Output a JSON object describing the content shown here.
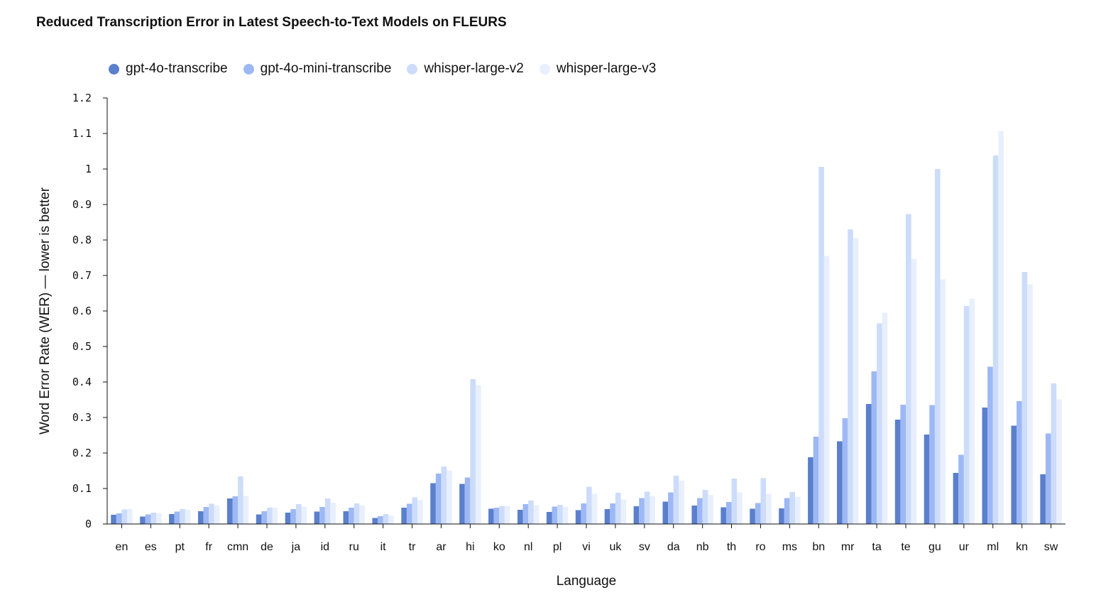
{
  "chart_data": {
    "type": "bar",
    "title": "Reduced Transcription Error in Latest Speech-to-Text Models on FLEURS",
    "xlabel": "Language",
    "ylabel": "Word Error Rate (WER) — lower is better",
    "ylim": [
      0,
      1.2
    ],
    "yticks": [
      "0",
      "0.1",
      "0.2",
      "0.3",
      "0.4",
      "0.5",
      "0.6",
      "0.7",
      "0.8",
      "0.9",
      "1",
      "1.1",
      "1.2"
    ],
    "grid": false,
    "legend_position": "top-left",
    "categories": [
      "en",
      "es",
      "pt",
      "fr",
      "cmn",
      "de",
      "ja",
      "id",
      "ru",
      "it",
      "tr",
      "ar",
      "hi",
      "ko",
      "nl",
      "pl",
      "vi",
      "uk",
      "sv",
      "da",
      "nb",
      "th",
      "ro",
      "ms",
      "bn",
      "mr",
      "ta",
      "te",
      "gu",
      "ur",
      "ml",
      "kn",
      "sw"
    ],
    "series": [
      {
        "name": "gpt-4o-transcribe",
        "color": "#5a7fcc",
        "values": [
          0.026,
          0.021,
          0.028,
          0.036,
          0.072,
          0.027,
          0.032,
          0.035,
          0.036,
          0.017,
          0.046,
          0.115,
          0.113,
          0.043,
          0.04,
          0.034,
          0.039,
          0.042,
          0.05,
          0.063,
          0.052,
          0.047,
          0.043,
          0.044,
          0.188,
          0.233,
          0.338,
          0.294,
          0.252,
          0.144,
          0.328,
          0.277,
          0.14
        ]
      },
      {
        "name": "gpt-4o-mini-transcribe",
        "color": "#9db8f4",
        "values": [
          0.03,
          0.027,
          0.035,
          0.048,
          0.078,
          0.036,
          0.042,
          0.048,
          0.046,
          0.022,
          0.057,
          0.142,
          0.131,
          0.046,
          0.056,
          0.049,
          0.058,
          0.058,
          0.073,
          0.089,
          0.073,
          0.062,
          0.059,
          0.073,
          0.246,
          0.298,
          0.43,
          0.336,
          0.335,
          0.195,
          0.443,
          0.346,
          0.255
        ]
      },
      {
        "name": "whisper-large-v2",
        "color": "#ccdcfa",
        "values": [
          0.041,
          0.032,
          0.042,
          0.057,
          0.134,
          0.046,
          0.056,
          0.072,
          0.058,
          0.028,
          0.075,
          0.162,
          0.408,
          0.05,
          0.066,
          0.054,
          0.105,
          0.088,
          0.091,
          0.136,
          0.096,
          0.128,
          0.129,
          0.09,
          1.006,
          0.83,
          0.565,
          0.873,
          1.0,
          0.614,
          1.038,
          0.71,
          0.396
        ]
      },
      {
        "name": "whisper-large-v3",
        "color": "#e8effd",
        "values": [
          0.042,
          0.03,
          0.04,
          0.052,
          0.079,
          0.046,
          0.049,
          0.06,
          0.052,
          0.024,
          0.068,
          0.151,
          0.391,
          0.051,
          0.053,
          0.049,
          0.085,
          0.069,
          0.078,
          0.122,
          0.082,
          0.089,
          0.085,
          0.077,
          0.755,
          0.805,
          0.595,
          0.747,
          0.689,
          0.635,
          1.107,
          0.675,
          0.351
        ]
      }
    ]
  }
}
